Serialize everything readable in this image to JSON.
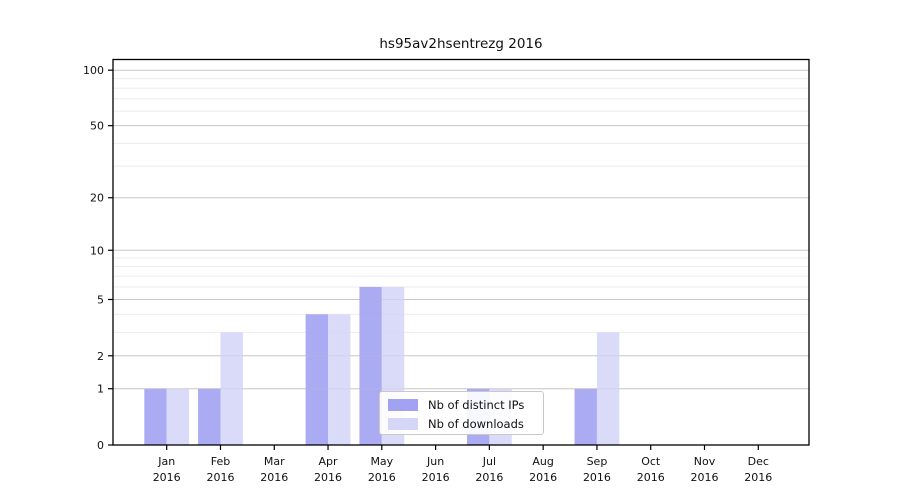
{
  "chart_data": {
    "type": "bar",
    "title": "hs95av2hsentrezg 2016",
    "categories": [
      "Jan",
      "Feb",
      "Mar",
      "Apr",
      "May",
      "Jun",
      "Jul",
      "Aug",
      "Sep",
      "Oct",
      "Nov",
      "Dec"
    ],
    "category_year": "2016",
    "series": [
      {
        "name": "Nb of distinct IPs",
        "color": "#a2a2f2",
        "values": [
          1,
          1,
          0,
          4,
          6,
          0,
          1,
          0,
          1,
          0,
          0,
          0
        ]
      },
      {
        "name": "Nb of downloads",
        "color": "#d6d6f8",
        "values": [
          1,
          3,
          0,
          4,
          6,
          0,
          1,
          0,
          3,
          0,
          0,
          0
        ]
      }
    ],
    "y_axis": {
      "scale": "log1p",
      "ticks": [
        0,
        1,
        2,
        5,
        10,
        20,
        50,
        100
      ],
      "minor_gridlines": [
        3,
        4,
        6,
        7,
        8,
        9,
        30,
        40,
        60,
        70,
        80,
        90
      ],
      "max": 115
    },
    "xlabel": "",
    "ylabel": "",
    "grid": true,
    "legend_position": "bottom-center"
  },
  "colors": {
    "bar_ips": "#a2a2f2",
    "bar_downloads": "#d6d6f8",
    "major_gridline": "#c9c9c9",
    "minor_gridline": "#ebebeb",
    "spine": "#000000",
    "text": "#111111",
    "legend_border": "#c9c9c9",
    "background": "#ffffff"
  }
}
